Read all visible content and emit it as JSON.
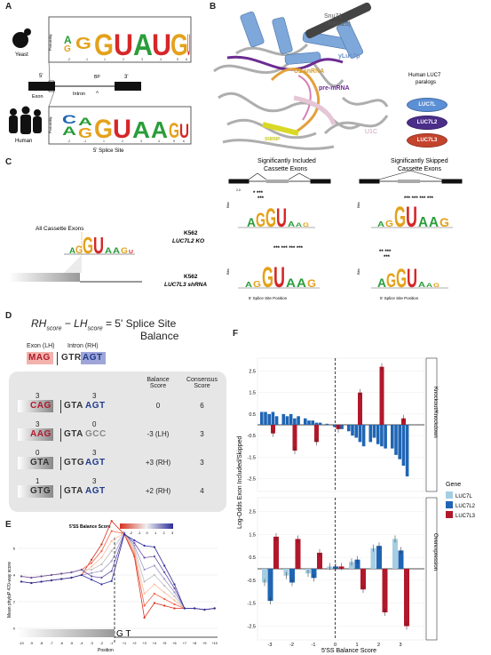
{
  "panelA": {
    "letter": "A",
    "yeast": "Yeast",
    "human": "Human",
    "prob": "Probability",
    "yeast_logo": [
      "G",
      "U",
      "A",
      "U",
      "G",
      "U"
    ],
    "human_logo_top": [
      "A",
      "G",
      "G",
      "U",
      "A",
      "A",
      "G",
      "U"
    ],
    "pos": [
      "-2",
      "-1",
      "1",
      "2",
      "3",
      "4",
      "5",
      "6"
    ],
    "five": "5'",
    "three": "3'",
    "bp": "BP",
    "a": "A",
    "exon": "Exon",
    "intron": "Intron",
    "caption": "5' Splice Site"
  },
  "panelB": {
    "letter": "B",
    "snu71": "Snu71",
    "rbm25": "(RBM25)",
    "yluc7p": "yLuc7p",
    "u1snrna": "U1 snRNA",
    "premrna": "pre-mRNA",
    "snrnp": "SNRNP",
    "u1c": "U1C",
    "paralogs_title1": "Human LUC7",
    "paralogs_title2": "paralogs",
    "p1": "LUC7L",
    "p2": "LUC7L2",
    "p3": "LUC7L3"
  },
  "panelC": {
    "letter": "C",
    "all": "All Cassette Exons",
    "inc": "Significantly Included",
    "inc2": "Cassette Exons",
    "skip": "Significantly Skipped",
    "skip2": "Cassette Exons",
    "row1a": "K562",
    "row1b": "LUC7L2 KO",
    "row2a": "K562",
    "row2b": "LUC7L3 shRNA",
    "bits": "Bits",
    "xlabel": "5' Splice Site Position"
  },
  "panelD": {
    "letter": "D",
    "formula": "RH",
    "formula_sub1": "score",
    "minus": " − LH",
    "formula_sub2": "score",
    "eq": " = 5' Splice Site",
    "balance": "Balance",
    "exon_lh": "Exon (LH)",
    "intron_rh": "Intron (RH)",
    "top_exon": "MAG",
    "top_intron_gt": "GTR",
    "top_intron_agt": "AGT",
    "col_balance": "Balance",
    "col_balance2": "Score",
    "col_consensus": "Consensus",
    "col_consensus2": "Score",
    "rows": [
      {
        "lnum": "3",
        "rnum": "3",
        "exon": "CAG",
        "gt": "GTA",
        "rh": "AGT",
        "bal": "0",
        "cons": "6"
      },
      {
        "lnum": "3",
        "rnum": "0",
        "exon": "AAG",
        "gt": "GTA",
        "rh": "GCC",
        "bal": "-3 (LH)",
        "cons": "3"
      },
      {
        "lnum": "0",
        "rnum": "3",
        "exon": "GTA",
        "gt": "GTG",
        "rh": "AGT",
        "bal": "+3 (RH)",
        "cons": "3"
      },
      {
        "lnum": "1",
        "rnum": "3",
        "exon": "GTG",
        "gt": "GTA",
        "rh": "AGT",
        "bal": "+2 (RH)",
        "cons": "4"
      }
    ]
  },
  "panelE": {
    "letter": "E",
    "legend": "5'SS Balance Score",
    "legend_ticks": [
      "-3",
      "-2",
      "-1",
      "0",
      "1",
      "2",
      "3"
    ],
    "ylabel": "Mean phyloP 470-way score",
    "xlabel": "Position",
    "gt": "G T",
    "yticks": [
      "0",
      "2",
      "4",
      "6"
    ],
    "xticks": [
      "-10",
      "-9",
      "-8",
      "-7",
      "-6",
      "-5",
      "-4",
      "-3",
      "-2",
      "-1",
      "+1",
      "+2",
      "+3",
      "+4",
      "+5",
      "+6",
      "+7",
      "+8",
      "+9",
      "+10"
    ]
  },
  "panelF": {
    "letter": "F",
    "ylabel": "Log-Odds Exon Included/Skipped",
    "xlabel": "5'SS Balance Score",
    "facet1": "Knockout/Knockdown",
    "facet2": "Overexpression",
    "legend_title": "Gene",
    "legend": [
      "LUC7L",
      "LUC7L2",
      "LUC7L3"
    ],
    "yticks": [
      "2.5",
      "1.5",
      "0.5",
      "-0.5",
      "-1.5",
      "-2.5"
    ],
    "xticks": [
      "-3",
      "-2",
      "-1",
      "0",
      "1",
      "2",
      "3"
    ],
    "colors": {
      "LUC7L": "#a6cee3",
      "LUC7L2": "#1f65b4",
      "LUC7L3": "#b2182b"
    }
  },
  "chart_data": [
    {
      "type": "bar",
      "title": "Knockout/Knockdown",
      "xlabel": "5'SS Balance Score",
      "ylabel": "Log-Odds Exon Included/Skipped",
      "categories": [
        "-3",
        "-2",
        "-1",
        "0",
        "1",
        "2",
        "3"
      ],
      "ylim": [
        -3,
        3
      ],
      "series": [
        {
          "name": "LUC7L2",
          "values": [
            [
              0.6,
              0.6,
              0.5,
              0.6,
              0.4
            ],
            [
              0.5,
              0.4,
              0.5,
              0.3,
              0.4
            ],
            [
              0.3,
              0.2,
              0.2,
              0.1,
              0.1
            ],
            [
              0.05,
              0.0,
              -0.1,
              -0.1,
              -0.2
            ],
            [
              -0.3,
              -0.5,
              -0.6,
              -0.8,
              -1.0
            ],
            [
              -0.8,
              -0.6,
              -0.9,
              -1.0,
              -1.1
            ],
            [
              -1.1,
              -1.4,
              -1.6,
              -1.9,
              -2.4
            ]
          ]
        },
        {
          "name": "LUC7L3",
          "values": [
            -0.4,
            -1.2,
            -0.8,
            -0.2,
            1.5,
            2.7,
            0.3
          ]
        }
      ]
    },
    {
      "type": "bar",
      "title": "Overexpression",
      "xlabel": "5'SS Balance Score",
      "ylabel": "Log-Odds Exon Included/Skipped",
      "categories": [
        "-3",
        "-2",
        "-1",
        "0",
        "1",
        "2",
        "3"
      ],
      "ylim": [
        -3,
        3
      ],
      "series": [
        {
          "name": "LUC7L",
          "values": [
            -0.6,
            -0.3,
            -0.2,
            0.1,
            0.3,
            0.9,
            1.3
          ]
        },
        {
          "name": "LUC7L2",
          "values": [
            -1.4,
            -0.6,
            -0.4,
            0.1,
            0.4,
            1.0,
            0.8
          ]
        },
        {
          "name": "LUC7L3",
          "values": [
            1.4,
            1.3,
            0.7,
            0.1,
            -0.9,
            -1.9,
            -2.5
          ]
        }
      ]
    }
  ]
}
